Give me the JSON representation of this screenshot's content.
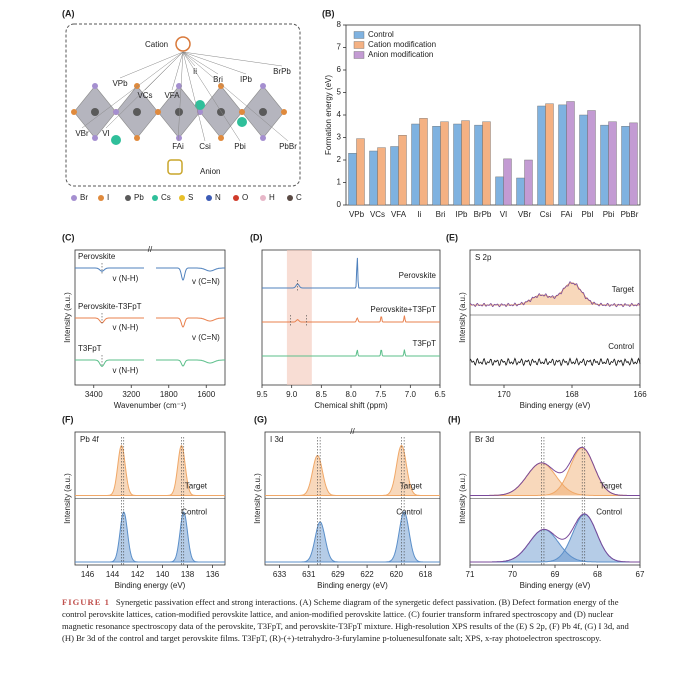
{
  "panels": {
    "A": {
      "label": "(A)",
      "cation": "Cation",
      "anion": "Anion",
      "defects": [
        "VPb",
        "VCs",
        "VFA",
        "Ii",
        "Bri",
        "IPb",
        "BrPb",
        "VBr",
        "VI",
        "FAi",
        "Csi",
        "Pbi",
        "PbBr"
      ],
      "legend": [
        {
          "name": "Br",
          "color": "#a58fd0"
        },
        {
          "name": "I",
          "color": "#e08a3c"
        },
        {
          "name": "Pb",
          "color": "#5a5a5a"
        },
        {
          "name": "Cs",
          "color": "#2fbf9a"
        },
        {
          "name": "S",
          "color": "#e8c02a"
        },
        {
          "name": "N",
          "color": "#3c5bb5"
        },
        {
          "name": "O",
          "color": "#d03a2a"
        },
        {
          "name": "H",
          "color": "#e7b7c8"
        },
        {
          "name": "C",
          "color": "#5a4a44"
        }
      ]
    },
    "B": {
      "label": "(B)",
      "chart_data": {
        "type": "bar",
        "ylabel": "Formation energy (eV)",
        "categories": [
          "VPb",
          "VCs",
          "VFA",
          "Ii",
          "Bri",
          "IPb",
          "BrPb",
          "VI",
          "VBr",
          "Csi",
          "FAi",
          "PbI",
          "Pbi",
          "PbBr"
        ],
        "series": [
          {
            "name": "Control",
            "color": "#7fb2e0",
            "values": [
              2.3,
              2.4,
              2.6,
              3.6,
              3.5,
              3.6,
              3.55,
              1.25,
              1.2,
              4.4,
              4.45,
              4.0,
              3.55,
              3.5
            ]
          },
          {
            "name": "Cation modification",
            "color": "#f4b183",
            "values": [
              2.95,
              2.55,
              3.1,
              3.85,
              3.7,
              3.75,
              3.7,
              null,
              null,
              4.5,
              null,
              null,
              null,
              null
            ]
          },
          {
            "name": "Anion modification",
            "color": "#c39bd3",
            "values": [
              null,
              null,
              null,
              null,
              null,
              null,
              null,
              2.05,
              2.0,
              null,
              4.6,
              4.2,
              3.7,
              3.65
            ]
          }
        ],
        "ylim": [
          0,
          8
        ],
        "yticks": [
          0,
          1,
          2,
          3,
          4,
          5,
          6,
          7,
          8
        ],
        "legend": "upper-left"
      }
    },
    "C": {
      "label": "(C)",
      "xlabel": "Wavenumber (cm⁻¹)",
      "ylabel": "Intensity (a.u.)",
      "xticks": [
        3400,
        3200,
        1800,
        1600
      ],
      "axis_break": true,
      "traces": [
        "Perovskite",
        "Perovskite-T3FpT",
        "T3FpT"
      ],
      "notes": [
        "v (N-H)",
        "v (C=N)",
        "v (N-H)",
        "v (C=N)",
        "v (N-H)"
      ]
    },
    "D": {
      "label": "(D)",
      "xlabel": "Chemical shift (ppm)",
      "xlim": [
        9.5,
        6.5
      ],
      "xticks": [
        {
          "value": 9.5,
          "label": "9.5"
        },
        {
          "value": 9,
          "label": "9.0"
        },
        {
          "value": 8.5,
          "label": "8.5"
        },
        {
          "value": 8,
          "label": "8.0"
        },
        {
          "value": 7.5,
          "label": "7.5"
        },
        {
          "value": 7,
          "label": "7.0"
        },
        {
          "value": 6.5,
          "label": "6.5"
        }
      ],
      "traces": [
        "Perovskite",
        "Perovskite+T3FpT",
        "T3FpT"
      ]
    },
    "E": {
      "label": "(E)",
      "xlabel": "Binding energy (eV)",
      "ylabel": "Intensity (a.u.)",
      "xlim": [
        171,
        166
      ],
      "xticks": [
        170,
        168,
        166
      ],
      "element": "S 2p",
      "traces": [
        "Target",
        "Control"
      ]
    },
    "F": {
      "label": "(F)",
      "xlabel": "Binding energy (eV)",
      "ylabel": "Intensity (a.u.)",
      "xlim": [
        147,
        135
      ],
      "xticks": [
        146,
        144,
        142,
        140,
        138,
        136
      ],
      "element": "Pb 4f",
      "traces": [
        "Target",
        "Control"
      ]
    },
    "G": {
      "label": "(G)",
      "xlabel": "Binding energy (eV)",
      "ylabel": "Intensity (a.u.)",
      "xticks": [
        633,
        631,
        629,
        622,
        620,
        618
      ],
      "axis_break": true,
      "element": "I 3d",
      "traces": [
        "Target",
        "Control"
      ]
    },
    "H": {
      "label": "(H)",
      "xlabel": "Binding energy (eV)",
      "ylabel": "Intensity (a.u.)",
      "xlim": [
        71,
        67
      ],
      "xticks": [
        71,
        70,
        69,
        68,
        67
      ],
      "element": "Br 3d",
      "traces": [
        "Target",
        "Control"
      ]
    }
  },
  "caption": {
    "label": "FIGURE 1",
    "text": "Synergetic passivation effect and strong interactions. (A) Scheme diagram of the synergetic defect passivation. (B) Defect formation energy of the control perovskite lattices, cation-modified perovskite lattice, and anion-modified perovskite lattice. (C) fourier transform infrared spectroscopy and (D) nuclear magnetic resonance spectroscopy data of the perovskite, T3FpT, and perovskite-T3FpT mixture. High-resolution XPS results of the (E) S 2p, (F) Pb 4f, (G) I 3d, and (H) Br 3d of the control and target perovskite films. T3FpT, (R)-(+)-tetrahydro-3-furylamine p-toluenesulfonate salt; XPS, x-ray photoelectron spectroscopy."
  }
}
